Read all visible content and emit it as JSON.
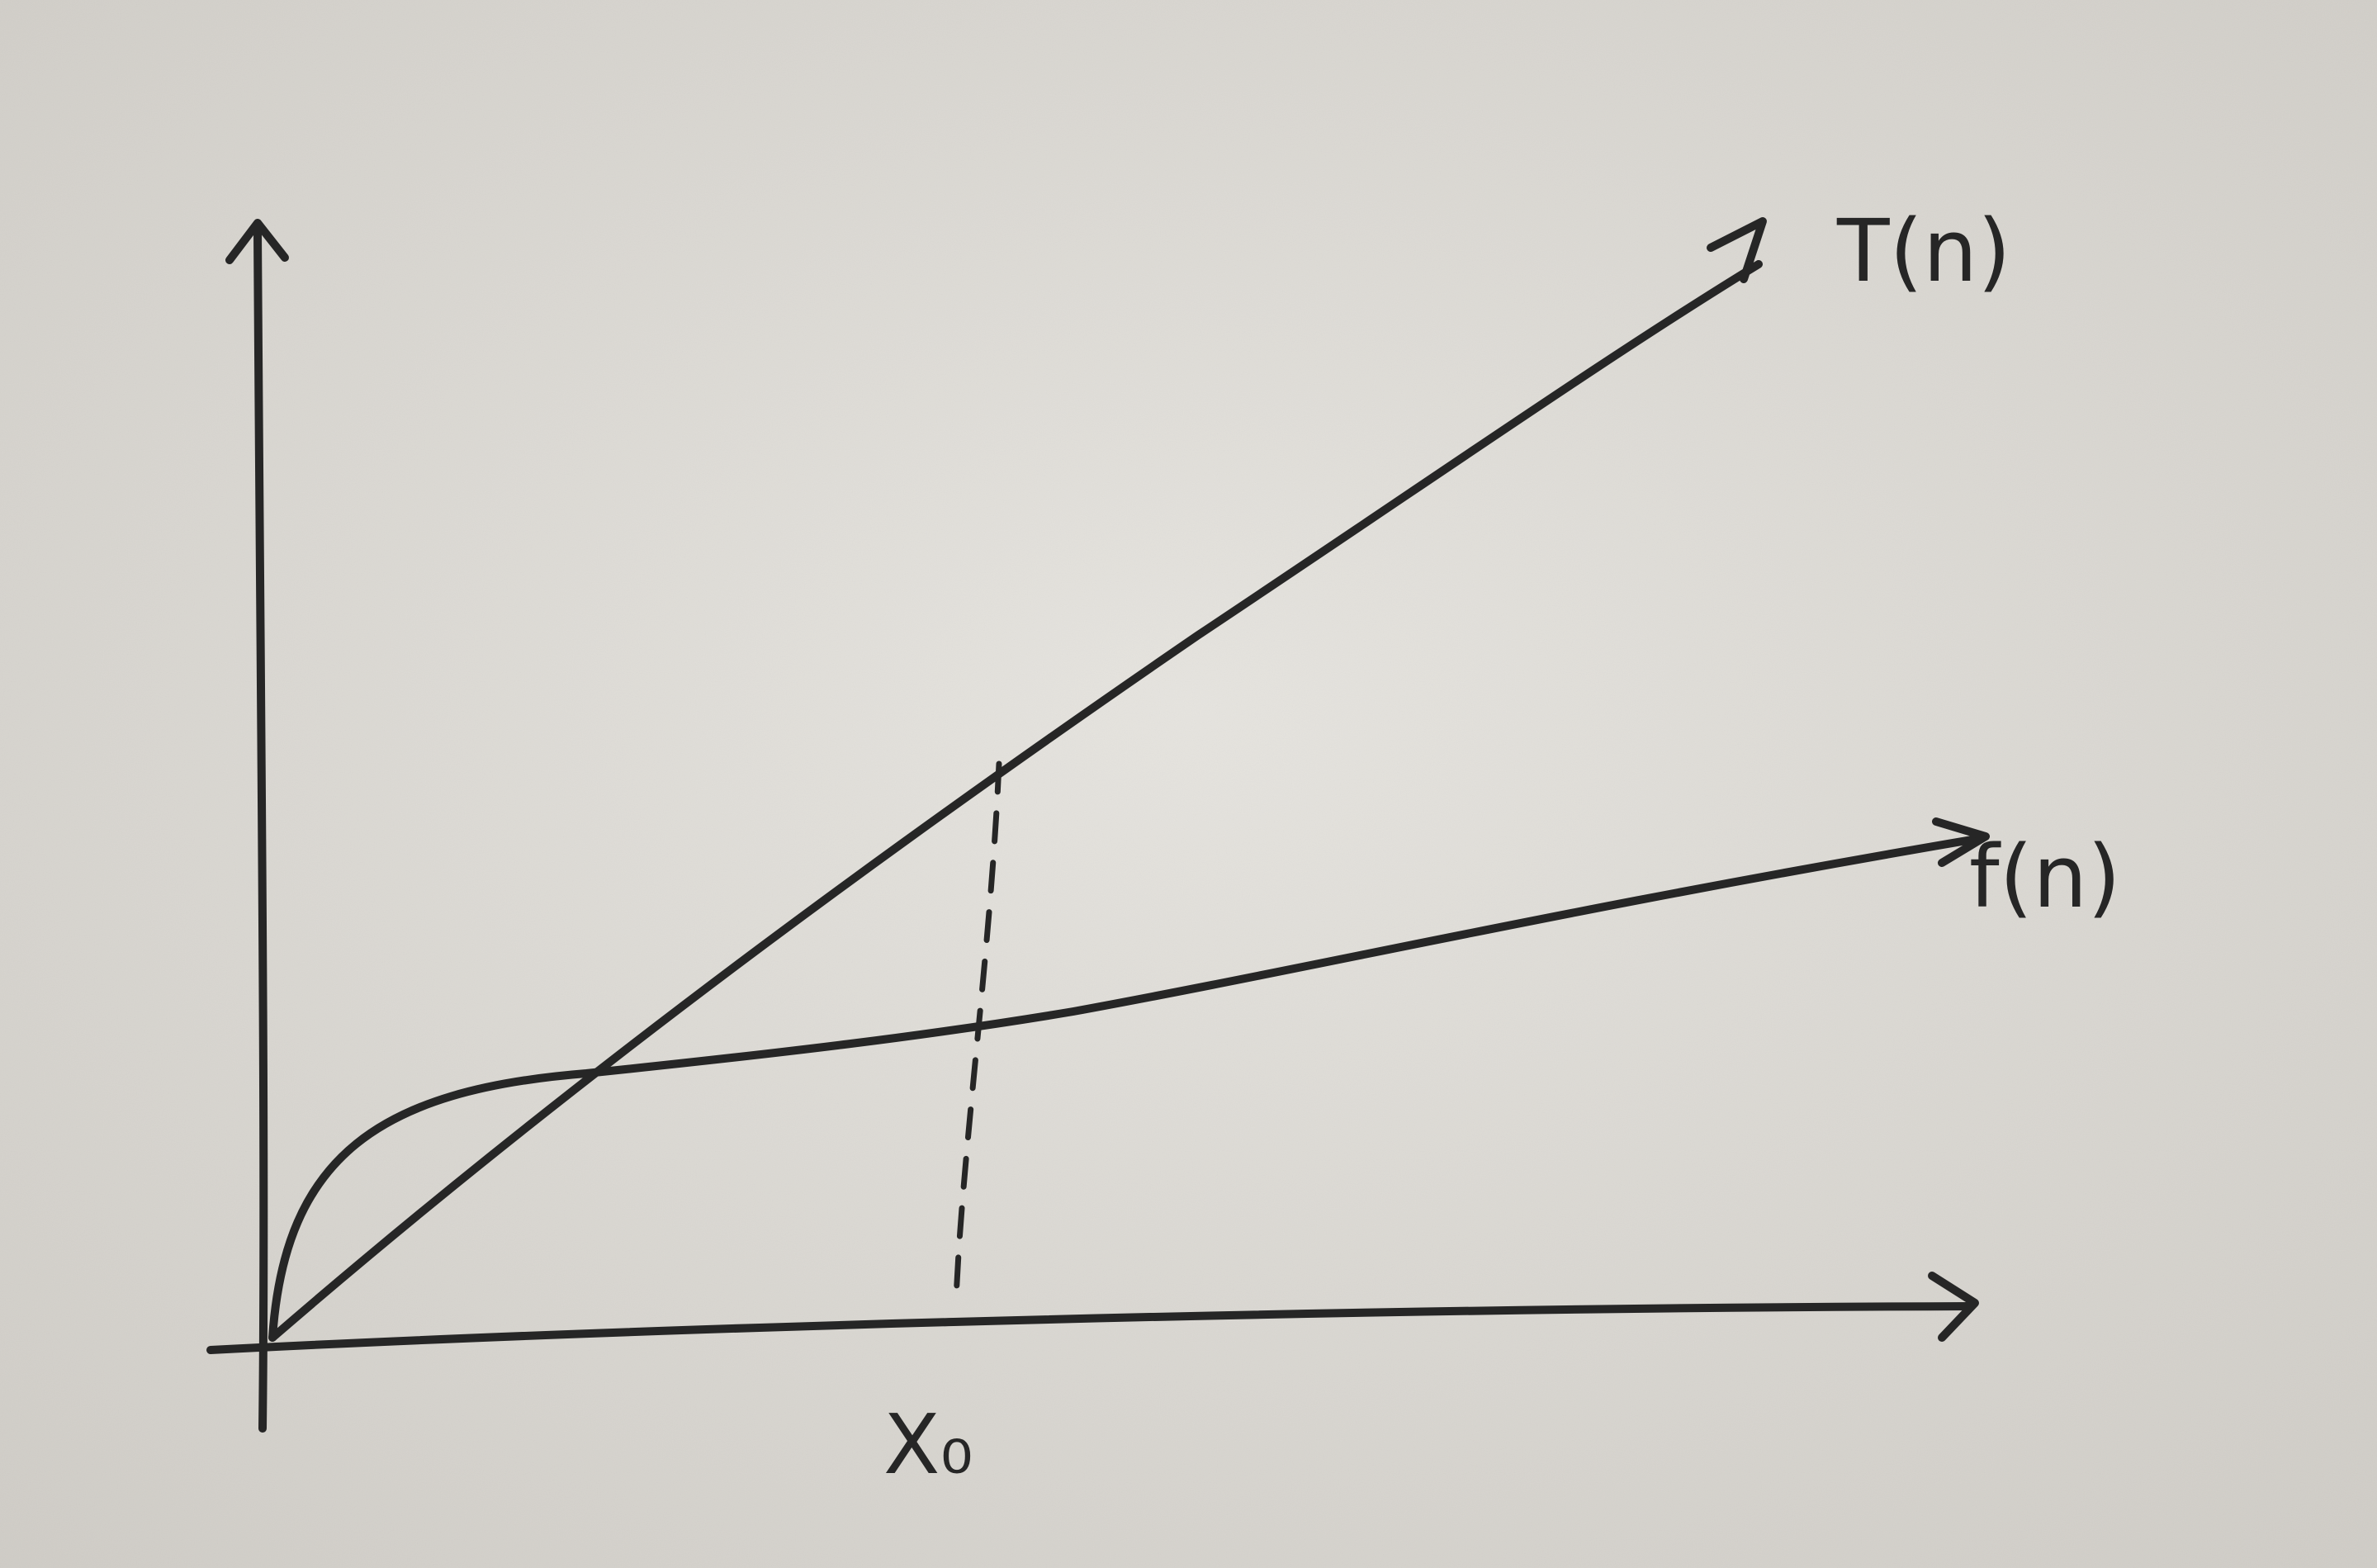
{
  "diagram": {
    "curves": [
      {
        "id": "t",
        "label": "T(n)"
      },
      {
        "id": "f",
        "label": "f(n)"
      }
    ],
    "x_marker": {
      "label": "X₀"
    }
  }
}
